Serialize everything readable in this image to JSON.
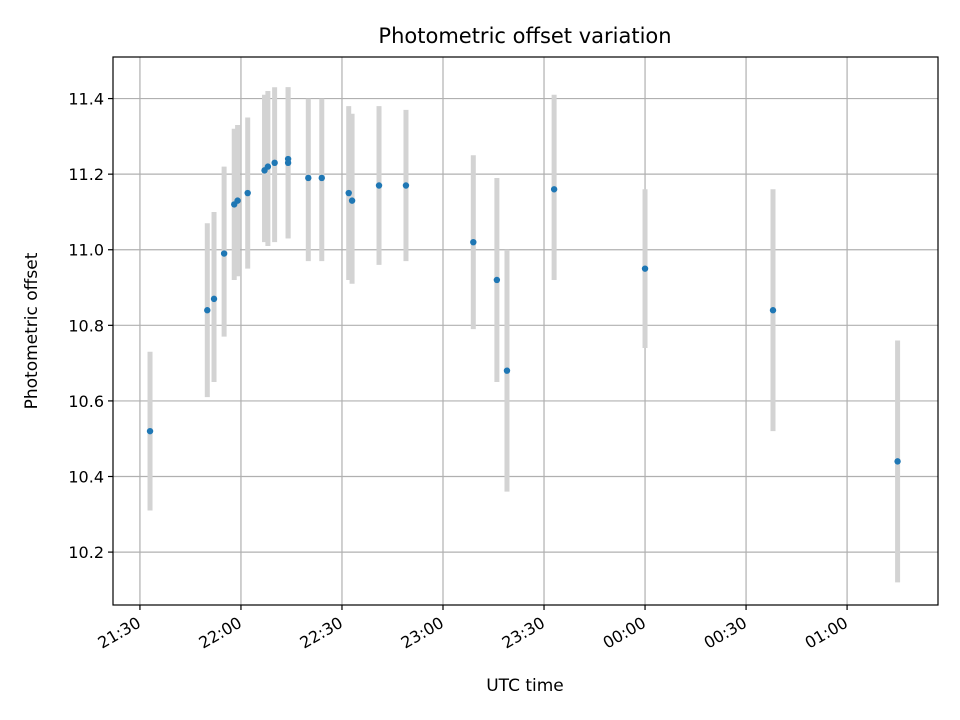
{
  "chart_data": {
    "type": "scatter",
    "title": "Photometric offset variation",
    "xlabel": "UTC time",
    "ylabel": "Photometric offset",
    "x_ticks": [
      "21:30",
      "22:00",
      "22:30",
      "23:00",
      "23:30",
      "00:00",
      "00:30",
      "01:00"
    ],
    "x_tick_minutes": [
      0,
      30,
      60,
      90,
      120,
      150,
      180,
      210
    ],
    "xlim_minutes": [
      -8,
      237
    ],
    "ylim": [
      10.06,
      11.51
    ],
    "y_ticks": [
      10.2,
      10.4,
      10.6,
      10.8,
      11.0,
      11.2,
      11.4
    ],
    "y_tick_labels": [
      "10.2",
      "10.4",
      "10.6",
      "10.8",
      "11.0",
      "11.2",
      "11.4"
    ],
    "grid": true,
    "colors": {
      "point": "#1f77b4",
      "errorbar": "#d3d3d3",
      "grid": "#b0b0b0"
    },
    "points": [
      {
        "x": "21:33",
        "y": 10.52,
        "ylow": 10.31,
        "yhigh": 10.73
      },
      {
        "x": "21:50",
        "y": 10.84,
        "ylow": 10.61,
        "yhigh": 11.07
      },
      {
        "x": "21:52",
        "y": 10.87,
        "ylow": 10.65,
        "yhigh": 11.1
      },
      {
        "x": "21:55",
        "y": 10.99,
        "ylow": 10.77,
        "yhigh": 11.22
      },
      {
        "x": "21:58",
        "y": 11.12,
        "ylow": 10.92,
        "yhigh": 11.32
      },
      {
        "x": "21:59",
        "y": 11.13,
        "ylow": 10.93,
        "yhigh": 11.33
      },
      {
        "x": "22:02",
        "y": 11.15,
        "ylow": 10.95,
        "yhigh": 11.35
      },
      {
        "x": "22:07",
        "y": 11.21,
        "ylow": 11.02,
        "yhigh": 11.41
      },
      {
        "x": "22:08",
        "y": 11.22,
        "ylow": 11.01,
        "yhigh": 11.42
      },
      {
        "x": "22:10",
        "y": 11.23,
        "ylow": 11.02,
        "yhigh": 11.43
      },
      {
        "x": "22:14",
        "y": 11.24,
        "ylow": 11.03,
        "yhigh": 11.43
      },
      {
        "x": "22:14",
        "y": 11.23,
        "ylow": 11.03,
        "yhigh": 11.43
      },
      {
        "x": "22:20",
        "y": 11.19,
        "ylow": 10.97,
        "yhigh": 11.4
      },
      {
        "x": "22:24",
        "y": 11.19,
        "ylow": 10.97,
        "yhigh": 11.4
      },
      {
        "x": "22:32",
        "y": 11.15,
        "ylow": 10.92,
        "yhigh": 11.38
      },
      {
        "x": "22:33",
        "y": 11.13,
        "ylow": 10.91,
        "yhigh": 11.36
      },
      {
        "x": "22:41",
        "y": 11.17,
        "ylow": 10.96,
        "yhigh": 11.38
      },
      {
        "x": "22:49",
        "y": 11.17,
        "ylow": 10.97,
        "yhigh": 11.37
      },
      {
        "x": "23:09",
        "y": 11.02,
        "ylow": 10.79,
        "yhigh": 11.25
      },
      {
        "x": "23:16",
        "y": 10.92,
        "ylow": 10.65,
        "yhigh": 11.19
      },
      {
        "x": "23:19",
        "y": 10.68,
        "ylow": 10.36,
        "yhigh": 11.0
      },
      {
        "x": "23:33",
        "y": 11.16,
        "ylow": 10.92,
        "yhigh": 11.41
      },
      {
        "x": "00:00",
        "y": 10.95,
        "ylow": 10.74,
        "yhigh": 11.16
      },
      {
        "x": "00:38",
        "y": 10.84,
        "ylow": 10.52,
        "yhigh": 11.16
      },
      {
        "x": "01:15",
        "y": 10.44,
        "ylow": 10.12,
        "yhigh": 10.76
      }
    ]
  }
}
